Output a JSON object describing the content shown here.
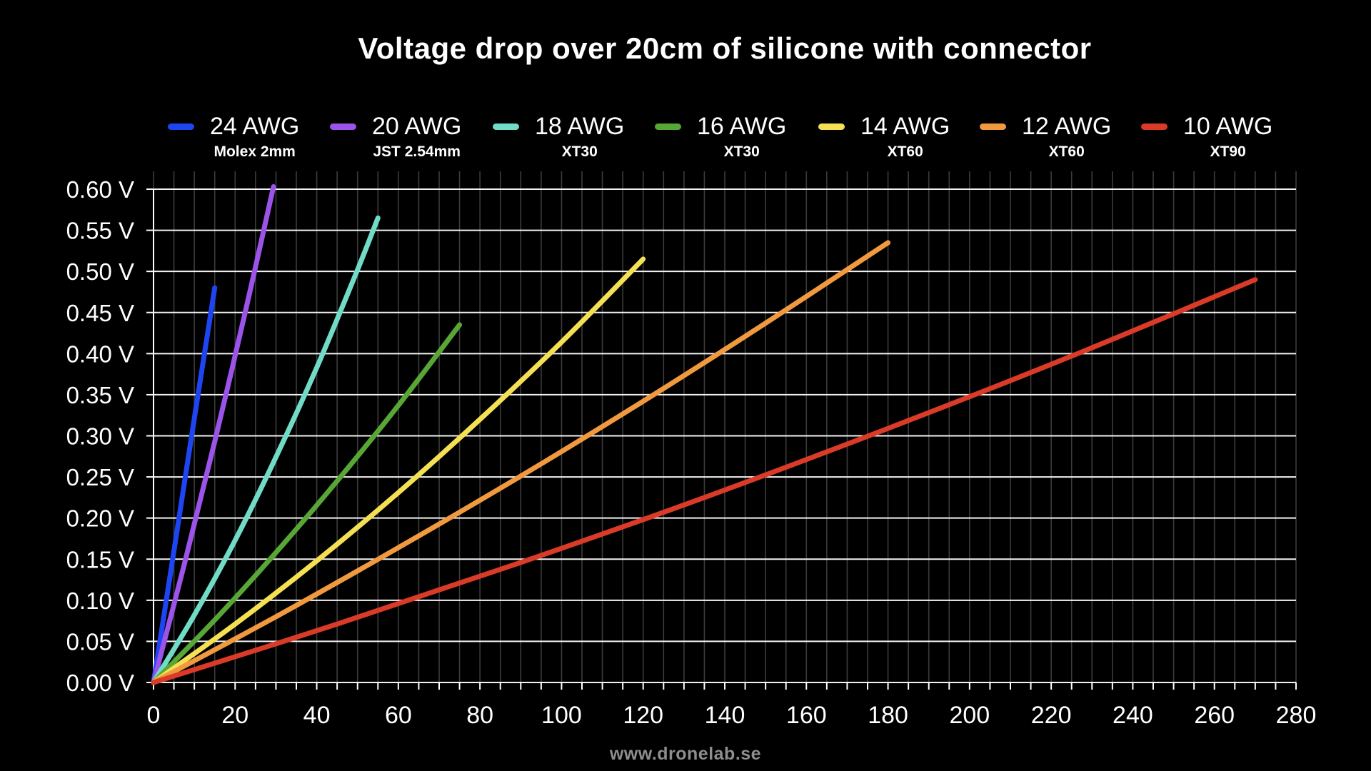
{
  "title": "Voltage drop over 20cm of silicone with connector",
  "watermark": "www.dronelab.se",
  "colors": {
    "background": "#000000",
    "text": "#ffffff",
    "grid_major": "#f2f2f2",
    "grid_minor": "#3c3c3c",
    "axis": "#ffffff",
    "watermark": "#8e8e8e"
  },
  "chart_data": {
    "type": "line",
    "title": "Voltage drop over 20cm of silicone with connector",
    "xlabel": "",
    "ylabel": "",
    "xlim": [
      0,
      280
    ],
    "ylim": [
      0,
      0.6
    ],
    "x_tick_step": 20,
    "x_minor_step": 5,
    "x_ticks": [
      0,
      20,
      40,
      60,
      80,
      100,
      120,
      140,
      160,
      180,
      200,
      220,
      240,
      260,
      280
    ],
    "y_tick_values": [
      0.0,
      0.05,
      0.1,
      0.15,
      0.2,
      0.25,
      0.3,
      0.35,
      0.4,
      0.45,
      0.5,
      0.55,
      0.6
    ],
    "y_tick_labels": [
      "0.00 V",
      "0.05 V",
      "0.10 V",
      "0.15 V",
      "0.20 V",
      "0.25 V",
      "0.30 V",
      "0.35 V",
      "0.40 V",
      "0.45 V",
      "0.50 V",
      "0.55 V",
      "0.60 V"
    ],
    "grid": "horizontal major white lines, vertical minor gray lines every 5",
    "legend_position": "top",
    "series": [
      {
        "name": "24 AWG",
        "connector": "Molex 2mm",
        "color": "#1e45f2",
        "points": [
          [
            0,
            0
          ],
          [
            5,
            0.16
          ],
          [
            10,
            0.321
          ],
          [
            15,
            0.48
          ]
        ]
      },
      {
        "name": "20 AWG",
        "connector": "JST 2.54mm",
        "color": "#9b53ea",
        "points": [
          [
            0,
            0
          ],
          [
            7.5,
            0.143
          ],
          [
            15,
            0.293
          ],
          [
            22.5,
            0.451
          ],
          [
            29.4,
            0.603
          ]
        ]
      },
      {
        "name": "18 AWG",
        "connector": "XT30",
        "color": "#70dcc8",
        "points": [
          [
            0,
            0
          ],
          [
            10,
            0.082
          ],
          [
            20,
            0.173
          ],
          [
            30,
            0.274
          ],
          [
            40,
            0.383
          ],
          [
            50,
            0.502
          ],
          [
            55,
            0.565
          ]
        ]
      },
      {
        "name": "16 AWG",
        "connector": "XT30",
        "color": "#58a636",
        "points": [
          [
            0,
            0
          ],
          [
            15,
            0.076
          ],
          [
            30,
            0.158
          ],
          [
            45,
            0.245
          ],
          [
            60,
            0.337
          ],
          [
            75,
            0.435
          ]
        ]
      },
      {
        "name": "14 AWG",
        "connector": "XT60",
        "color": "#f4e052",
        "points": [
          [
            0,
            0
          ],
          [
            20,
            0.071
          ],
          [
            40,
            0.148
          ],
          [
            60,
            0.231
          ],
          [
            80,
            0.32
          ],
          [
            100,
            0.414
          ],
          [
            120,
            0.515
          ]
        ]
      },
      {
        "name": "12 AWG",
        "connector": "XT60",
        "color": "#f0993e",
        "points": [
          [
            0,
            0
          ],
          [
            30,
            0.08
          ],
          [
            60,
            0.164
          ],
          [
            90,
            0.251
          ],
          [
            120,
            0.342
          ],
          [
            150,
            0.437
          ],
          [
            180,
            0.535
          ]
        ]
      },
      {
        "name": "10 AWG",
        "connector": "XT90",
        "color": "#da3a28",
        "points": [
          [
            0,
            0
          ],
          [
            45,
            0.071
          ],
          [
            90,
            0.146
          ],
          [
            135,
            0.225
          ],
          [
            180,
            0.309
          ],
          [
            225,
            0.397
          ],
          [
            270,
            0.49
          ]
        ]
      }
    ]
  }
}
